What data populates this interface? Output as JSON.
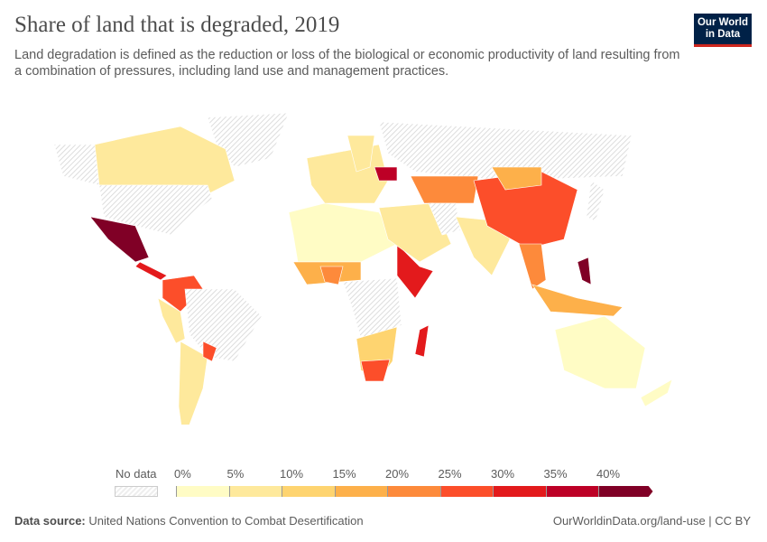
{
  "header": {
    "title": "Share of land that is degraded, 2019",
    "subtitle": "Land degradation is defined as the reduction or loss of the biological or economic productivity of land resulting from a combination of pressures, including land use and management practices.",
    "logo": "Our World in Data"
  },
  "legend": {
    "no_data_label": "No data",
    "ticks": [
      "0%",
      "5%",
      "10%",
      "15%",
      "20%",
      "25%",
      "30%",
      "35%",
      "40%"
    ],
    "colors": [
      "#fffcc5",
      "#fee99c",
      "#fed470",
      "#fdb04a",
      "#fd8a3b",
      "#fc4e2a",
      "#e31a1c",
      "#bd0026",
      "#800026"
    ],
    "no_data_color": "#eeeeee"
  },
  "map_regions": [
    {
      "id": "greenland",
      "value": null
    },
    {
      "id": "alaska",
      "value": null
    },
    {
      "id": "canada",
      "value": 9
    },
    {
      "id": "usa",
      "value": null
    },
    {
      "id": "mexico",
      "value": 42
    },
    {
      "id": "central-america",
      "value": 32
    },
    {
      "id": "colombia-venezuela",
      "value": 27
    },
    {
      "id": "brazil",
      "value": null
    },
    {
      "id": "andes",
      "value": 8
    },
    {
      "id": "southern-cone",
      "value": 8
    },
    {
      "id": "paraguay",
      "value": 27
    },
    {
      "id": "north-africa",
      "value": 3
    },
    {
      "id": "west-africa",
      "value": 17
    },
    {
      "id": "nigeria",
      "value": 22
    },
    {
      "id": "horn-of-africa",
      "value": 33
    },
    {
      "id": "central-africa",
      "value": null
    },
    {
      "id": "southern-africa",
      "value": 12
    },
    {
      "id": "south-africa",
      "value": 28
    },
    {
      "id": "madagascar",
      "value": 31
    },
    {
      "id": "europe",
      "value": 7
    },
    {
      "id": "scandinavia",
      "value": 5
    },
    {
      "id": "ukraine",
      "value": 36
    },
    {
      "id": "russia",
      "value": null
    },
    {
      "id": "kazakhstan",
      "value": 24
    },
    {
      "id": "middle-east",
      "value": 9
    },
    {
      "id": "iran",
      "value": null
    },
    {
      "id": "india",
      "value": 9
    },
    {
      "id": "china",
      "value": 28
    },
    {
      "id": "mongolia",
      "value": 19
    },
    {
      "id": "southeast-asia",
      "value": 24
    },
    {
      "id": "indonesia",
      "value": 19
    },
    {
      "id": "philippines",
      "value": 41
    },
    {
      "id": "japan",
      "value": null
    },
    {
      "id": "australia",
      "value": 4
    },
    {
      "id": "new-zealand",
      "value": 4
    }
  ],
  "footer": {
    "source_label": "Data source:",
    "source": "United Nations Convention to Combat Desertification",
    "link": "OurWorldinData.org/land-use | CC BY"
  }
}
